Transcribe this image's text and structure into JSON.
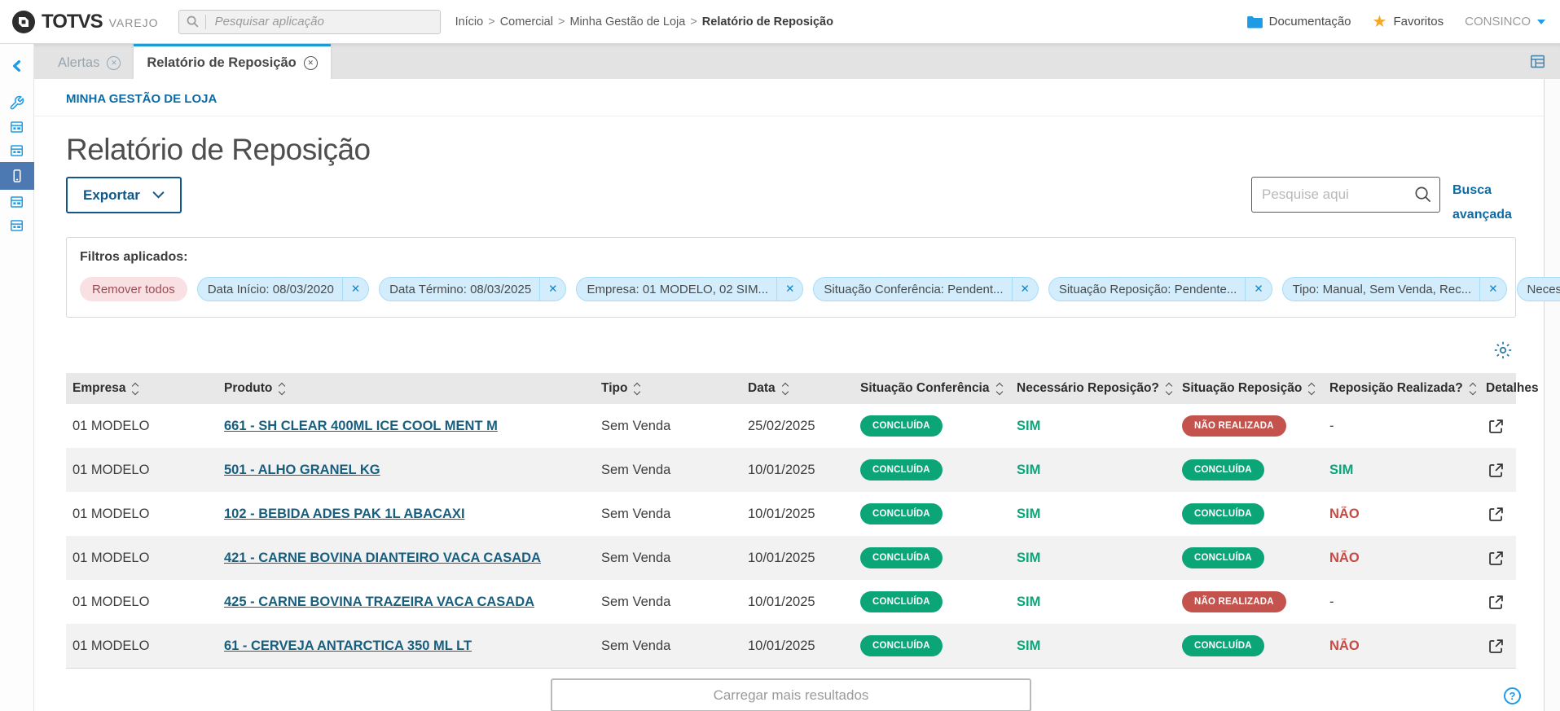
{
  "icons": {
    "close": "✕",
    "help": "?"
  },
  "colors": {
    "accent_blue": "#1e9be4",
    "primary_blue": "#0d6ba5",
    "success_green": "#0ba578",
    "danger_red": "#c5534d",
    "link_teal": "#175e7f",
    "active_sidebar": "#4d79b2",
    "tab_active_border": "#1b9cd8"
  },
  "header": {
    "logo_primary": "TOTVS",
    "logo_secondary": "VAREJO",
    "app_search_placeholder": "Pesquisar aplicação",
    "breadcrumb": [
      "Início",
      "Comercial",
      "Minha Gestão de Loja",
      "Relatório de Reposição"
    ],
    "breadcrumb_separator": ">",
    "links": {
      "documentation": "Documentação",
      "favorites": "Favoritos",
      "user": "CONSINCO"
    }
  },
  "tabs": [
    {
      "label": "Alertas",
      "active": false
    },
    {
      "label": "Relatório de Reposição",
      "active": true
    }
  ],
  "page": {
    "section_label": "MINHA GESTÃO DE LOJA",
    "title": "Relatório de Reposição",
    "export_button": "Exportar",
    "search_placeholder": "Pesquise aqui",
    "advanced_search": "Busca avançada",
    "filters_title": "Filtros aplicados:",
    "remove_all": "Remover todos",
    "filters": [
      "Data Início: 08/03/2020",
      "Data Término: 08/03/2025",
      "Empresa: 01 MODELO, 02 SIM...",
      "Situação Conferência: Pendent...",
      "Situação Reposição: Pendente...",
      "Tipo: Manual, Sem Venda, Rec...",
      "Necessário Reposição?: Sim"
    ],
    "load_more": "Carregar mais resultados"
  },
  "table": {
    "columns": [
      {
        "label": "Empresa",
        "sortable": true
      },
      {
        "label": "Produto",
        "sortable": true
      },
      {
        "label": "Tipo",
        "sortable": true
      },
      {
        "label": "Data",
        "sortable": true
      },
      {
        "label": "Situação Conferência",
        "sortable": true
      },
      {
        "label": "Necessário Reposição?",
        "sortable": true
      },
      {
        "label": "Situação Reposição",
        "sortable": true
      },
      {
        "label": "Reposição Realizada?",
        "sortable": true
      },
      {
        "label": "Detalhes",
        "sortable": false
      }
    ],
    "rows": [
      {
        "empresa": "01 MODELO",
        "produto": "661 - SH CLEAR 400ML ICE COOL MENT M",
        "tipo": "Sem Venda",
        "data": "25/02/2025",
        "conferencia": {
          "label": "CONCLUÍDA",
          "status": "success"
        },
        "necessario": {
          "label": "SIM",
          "status": "success"
        },
        "reposicao": {
          "label": "NÃO REALIZADA",
          "status": "danger"
        },
        "realizada": {
          "label": "-",
          "status": "neutral"
        }
      },
      {
        "empresa": "01 MODELO",
        "produto": "501 - ALHO GRANEL KG",
        "tipo": "Sem Venda",
        "data": "10/01/2025",
        "conferencia": {
          "label": "CONCLUÍDA",
          "status": "success"
        },
        "necessario": {
          "label": "SIM",
          "status": "success"
        },
        "reposicao": {
          "label": "CONCLUÍDA",
          "status": "success"
        },
        "realizada": {
          "label": "SIM",
          "status": "success"
        }
      },
      {
        "empresa": "01 MODELO",
        "produto": "102 - BEBIDA ADES PAK 1L ABACAXI",
        "tipo": "Sem Venda",
        "data": "10/01/2025",
        "conferencia": {
          "label": "CONCLUÍDA",
          "status": "success"
        },
        "necessario": {
          "label": "SIM",
          "status": "success"
        },
        "reposicao": {
          "label": "CONCLUÍDA",
          "status": "success"
        },
        "realizada": {
          "label": "NÃO",
          "status": "danger"
        }
      },
      {
        "empresa": "01 MODELO",
        "produto": "421 - CARNE BOVINA DIANTEIRO VACA CASADA",
        "tipo": "Sem Venda",
        "data": "10/01/2025",
        "conferencia": {
          "label": "CONCLUÍDA",
          "status": "success"
        },
        "necessario": {
          "label": "SIM",
          "status": "success"
        },
        "reposicao": {
          "label": "CONCLUÍDA",
          "status": "success"
        },
        "realizada": {
          "label": "NÃO",
          "status": "danger"
        }
      },
      {
        "empresa": "01 MODELO",
        "produto": "425 - CARNE BOVINA TRAZEIRA VACA CASADA",
        "tipo": "Sem Venda",
        "data": "10/01/2025",
        "conferencia": {
          "label": "CONCLUÍDA",
          "status": "success"
        },
        "necessario": {
          "label": "SIM",
          "status": "success"
        },
        "reposicao": {
          "label": "NÃO REALIZADA",
          "status": "danger"
        },
        "realizada": {
          "label": "-",
          "status": "neutral"
        }
      },
      {
        "empresa": "01 MODELO",
        "produto": "61 - CERVEJA ANTARCTICA 350 ML LT",
        "tipo": "Sem Venda",
        "data": "10/01/2025",
        "conferencia": {
          "label": "CONCLUÍDA",
          "status": "success"
        },
        "necessario": {
          "label": "SIM",
          "status": "success"
        },
        "reposicao": {
          "label": "CONCLUÍDA",
          "status": "success"
        },
        "realizada": {
          "label": "NÃO",
          "status": "danger"
        }
      }
    ]
  }
}
